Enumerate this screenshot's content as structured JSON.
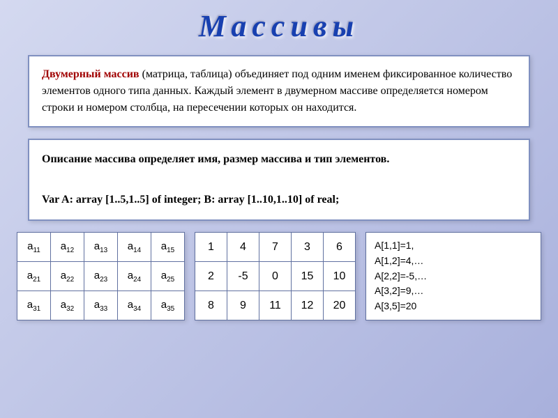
{
  "title": "Массивы",
  "definition": {
    "lead": "Двумерный массив",
    "text1": " (матрица, таблица) объединяет под одним именем фиксированное количество элементов одного типа данных. Каждый элемент в двумерном массиве определяется номером строки и номером столбца, на пересечении которых он находится."
  },
  "declaration": {
    "line1": "Описание массива определяет имя, размер массива и тип элементов.",
    "line2": "Var A: array [1..5,1..5] of integer;  B: array [1..10,1..10] of real;"
  },
  "indexTable": {
    "rows": [
      [
        "a|11",
        "a|12",
        "a|13",
        "a|14",
        "a|15"
      ],
      [
        "a|21",
        "a|22",
        "a|23",
        "a|24",
        "a|25"
      ],
      [
        "a|31",
        "a|32",
        "a|33",
        "a|34",
        "a|35"
      ]
    ]
  },
  "valuesTable": {
    "rows": [
      [
        "1",
        "4",
        "7",
        "3",
        "6"
      ],
      [
        "2",
        "-5",
        "0",
        "15",
        "10"
      ],
      [
        "8",
        "9",
        "11",
        "12",
        "20"
      ]
    ]
  },
  "access": {
    "lines": [
      "A[1,1]=1,",
      "A[1,2]=4,…",
      "A[2,2]=-5,…",
      "A[3,2]=9,…",
      "A[3,5]=20"
    ]
  }
}
